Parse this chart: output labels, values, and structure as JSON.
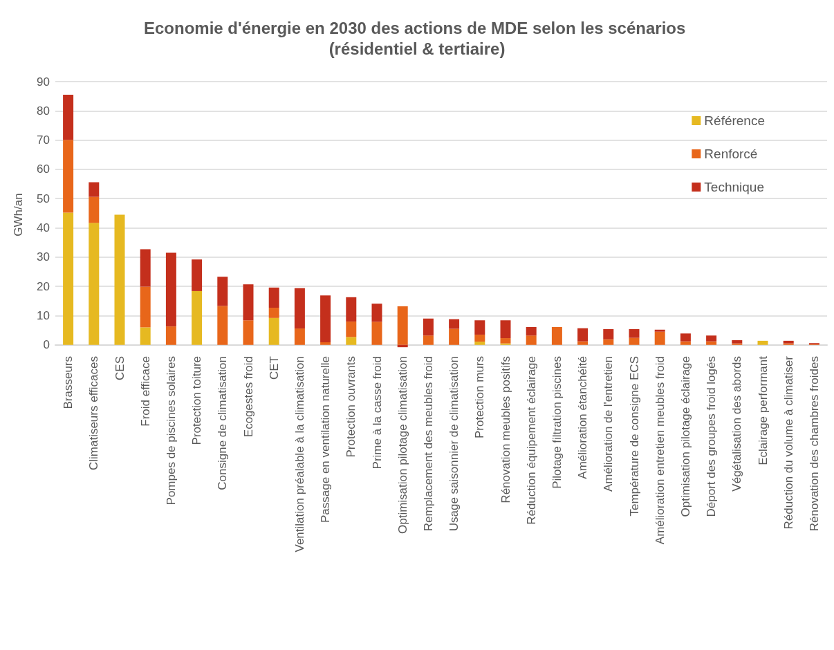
{
  "chart_data": {
    "type": "bar",
    "title": "Economie d'énergie en 2030 des actions de MDE selon les scénarios (résidentiel & tertiaire)",
    "ylabel": "GWh/an",
    "stacked": true,
    "legend": "top right",
    "grid": "y",
    "categories": [
      "Brasseurs",
      "Climatiseurs efficaces",
      "CES",
      "Froid efficace",
      "Pompes de piscines solaires",
      "Protection toiture",
      "Consigne de climatisation",
      "Ecogestes froid",
      "CET",
      "Ventilation préalable à la climatisation",
      "Passage en ventilation naturelle",
      "Protection ouvrants",
      "Prime à la casse froid",
      "Optimisation pilotage climatisation",
      "Remplacement des meubles froid",
      "Usage saisonnier de climatisation",
      "Protection murs",
      "Rénovation meubles positifs",
      "Réduction équipement éclairage",
      "Pilotage filtration piscines",
      "Amélioration étanchéité",
      "Amélioration de l'entretien",
      "Température de consigne ECS",
      "Amélioration entretien meubles froid",
      "Optimisation pilotage éclairage",
      "Déport des groupes froid logés",
      "Végétalisation des abords",
      "Eclairage performant",
      "Réduction du volume à climatiser",
      "Rénovation des chambres froides"
    ],
    "ylim": [
      -1,
      90
    ],
    "yticks": [
      0,
      10,
      20,
      30,
      40,
      50,
      60,
      70,
      80,
      90
    ],
    "series": [
      {
        "name": "Référence",
        "color": "#e6b921",
        "values": [
          45.2,
          41.7,
          44.5,
          6.0,
          null,
          18.4,
          null,
          null,
          9.2,
          null,
          null,
          2.7,
          null,
          null,
          null,
          null,
          1.1,
          0.5,
          null,
          null,
          null,
          null,
          null,
          null,
          null,
          null,
          null,
          1.4,
          null,
          null
        ]
      },
      {
        "name": "Renforcé",
        "color": "#e8661a",
        "values": [
          24.9,
          8.9,
          null,
          13.9,
          6.3,
          null,
          13.3,
          8.4,
          3.5,
          5.6,
          0.9,
          5.3,
          7.9,
          13.2,
          3.2,
          5.5,
          2.4,
          1.8,
          3.2,
          6.1,
          1.2,
          1.9,
          2.4,
          4.5,
          1.2,
          1.2,
          0.5,
          null,
          0.5,
          0.2
        ]
      },
      {
        "name": "Technique",
        "color": "#c42f1c",
        "values": [
          15.4,
          5.0,
          null,
          12.8,
          25.2,
          10.8,
          10.0,
          12.3,
          6.9,
          13.8,
          16.0,
          8.3,
          6.2,
          -0.8,
          5.8,
          3.3,
          4.9,
          6.1,
          2.9,
          null,
          4.5,
          3.5,
          3.0,
          0.7,
          2.7,
          2.0,
          1.1,
          null,
          0.9,
          0.4
        ]
      }
    ]
  }
}
